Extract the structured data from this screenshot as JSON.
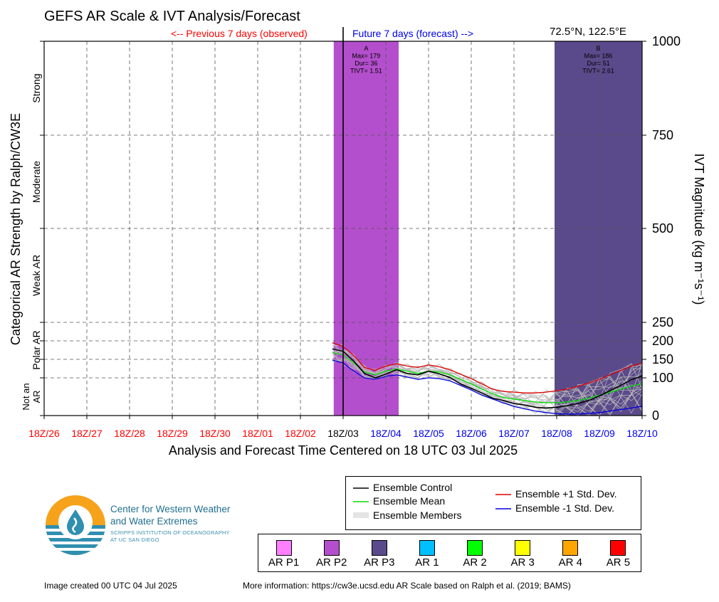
{
  "header": {
    "title": "GEFS AR Scale & IVT Analysis/Forecast",
    "previous_label": "<-- Previous 7 days (observed)",
    "future_label": "Future 7 days (forecast) -->",
    "location": "72.5°N, 122.5°E"
  },
  "colors": {
    "observed": "#ff0000",
    "forecast": "#0000ee",
    "ar_p2": "#b34fcc",
    "ar_p3": "#5b4a8b",
    "control": "#000000",
    "mean": "#00e000",
    "plus_std": "#e00000",
    "minus_std": "#0000e0",
    "members": "#b8b8b8"
  },
  "chart_data": {
    "type": "line",
    "xlabel": "Analysis and Forecast Time Centered on 18 UTC 03 Jul 2025",
    "ylabel_left": "Categorical AR Strength by Ralph/CW3E",
    "ylabel_right": "IVT Magnitude (kg m⁻¹s⁻¹)",
    "ylim": [
      0,
      1000
    ],
    "x_range": [
      0,
      14
    ],
    "x_ticks": [
      {
        "label": "18Z/26",
        "x": 0,
        "kind": "observed"
      },
      {
        "label": "18Z/27",
        "x": 1,
        "kind": "observed"
      },
      {
        "label": "18Z/28",
        "x": 2,
        "kind": "observed"
      },
      {
        "label": "18Z/29",
        "x": 3,
        "kind": "observed"
      },
      {
        "label": "18Z/30",
        "x": 4,
        "kind": "observed"
      },
      {
        "label": "18Z/01",
        "x": 5,
        "kind": "observed"
      },
      {
        "label": "18Z/02",
        "x": 6,
        "kind": "observed"
      },
      {
        "label": "18Z/03",
        "x": 7,
        "kind": "now"
      },
      {
        "label": "18Z/04",
        "x": 8,
        "kind": "forecast"
      },
      {
        "label": "18Z/05",
        "x": 9,
        "kind": "forecast"
      },
      {
        "label": "18Z/06",
        "x": 10,
        "kind": "forecast"
      },
      {
        "label": "18Z/07",
        "x": 11,
        "kind": "forecast"
      },
      {
        "label": "18Z/08",
        "x": 12,
        "kind": "forecast"
      },
      {
        "label": "18Z/09",
        "x": 13,
        "kind": "forecast"
      },
      {
        "label": "18Z/10",
        "x": 14,
        "kind": "forecast"
      }
    ],
    "y_ticks": [
      0,
      100,
      150,
      200,
      250,
      500,
      750,
      1000
    ],
    "categories": [
      {
        "label": "Not an",
        "label2": "AR",
        "y0": 0,
        "y1": 100
      },
      {
        "label": "Polar AR",
        "label2": "",
        "y0": 100,
        "y1": 250
      },
      {
        "label": "Weak AR",
        "label2": "",
        "y0": 250,
        "y1": 500
      },
      {
        "label": "Moderate",
        "label2": "",
        "y0": 500,
        "y1": 750
      },
      {
        "label": "Strong",
        "label2": "",
        "y0": 750,
        "y1": 1000
      }
    ],
    "events": [
      {
        "id": "A",
        "x0": 6.78,
        "x1": 8.3,
        "category": "AR P2",
        "lines": [
          "A",
          "Max= 179",
          "Dur= 36",
          "TIVT= 1.51"
        ]
      },
      {
        "id": "B",
        "x0": 11.95,
        "x1": 14.0,
        "category": "AR P3",
        "lines": [
          "B",
          "Max= 186",
          "Dur= 51",
          "TIVT= 2.61"
        ]
      }
    ],
    "x": [
      6.75,
      7.0,
      7.25,
      7.5,
      7.75,
      8.0,
      8.25,
      8.5,
      8.75,
      9.0,
      9.25,
      9.5,
      9.75,
      10.0,
      10.25,
      10.5,
      10.75,
      11.0,
      11.25,
      11.5,
      11.75,
      12.0,
      12.25,
      12.5,
      12.75,
      13.0,
      13.25,
      13.5,
      13.75,
      14.0
    ],
    "series": [
      {
        "name": "Ensemble Control",
        "key": "control",
        "values": [
          178,
          172,
          145,
          112,
          100,
          110,
          122,
          112,
          108,
          118,
          111,
          101,
          84,
          72,
          60,
          46,
          40,
          32,
          28,
          22,
          20,
          22,
          26,
          32,
          40,
          52,
          66,
          80,
          95,
          105
        ]
      },
      {
        "name": "Ensemble Mean",
        "key": "mean",
        "values": [
          168,
          162,
          140,
          116,
          108,
          118,
          124,
          118,
          112,
          118,
          116,
          108,
          96,
          84,
          70,
          58,
          48,
          44,
          40,
          36,
          34,
          34,
          36,
          40,
          46,
          54,
          62,
          70,
          78,
          85
        ]
      },
      {
        "name": "Ensemble +1 Std. Dev.",
        "key": "plus_std",
        "values": [
          195,
          185,
          160,
          128,
          120,
          132,
          138,
          132,
          128,
          135,
          130,
          122,
          110,
          98,
          84,
          70,
          64,
          62,
          60,
          60,
          62,
          66,
          70,
          78,
          86,
          96,
          108,
          120,
          132,
          140
        ]
      },
      {
        "name": "Ensemble -1 Std. Dev.",
        "key": "minus_std",
        "values": [
          148,
          140,
          118,
          100,
          96,
          104,
          108,
          102,
          96,
          100,
          98,
          92,
          80,
          68,
          54,
          44,
          34,
          24,
          18,
          12,
          8,
          5,
          4,
          4,
          6,
          8,
          12,
          16,
          20,
          25
        ]
      }
    ]
  },
  "legend_lines": {
    "control": "Ensemble Control",
    "mean": "Ensemble Mean",
    "members": "Ensemble Members",
    "plus_std": "Ensemble +1 Std. Dev.",
    "minus_std": "Ensemble -1 Std. Dev."
  },
  "legend_scale": [
    {
      "label": "AR P1",
      "color": "#ff80ff"
    },
    {
      "label": "AR P2",
      "color": "#b34fcc"
    },
    {
      "label": "AR P3",
      "color": "#5b4a8b"
    },
    {
      "label": "AR 1",
      "color": "#00bfff"
    },
    {
      "label": "AR 2",
      "color": "#00ff00"
    },
    {
      "label": "AR 3",
      "color": "#ffff00"
    },
    {
      "label": "AR 4",
      "color": "#ffa500"
    },
    {
      "label": "AR 5",
      "color": "#ff0000"
    }
  ],
  "logo": {
    "line1": "Center for Western Weather",
    "line2": "and Water Extremes",
    "line3": "SCRIPPS INSTITUTION OF OCEANOGRAPHY",
    "line4": "AT UC SAN DIEGO"
  },
  "footer": {
    "created": "Image created 00 UTC 04 Jul 2025",
    "more_info": "More information: https://cw3e.ucsd.edu AR Scale based on Ralph et al. (2019; BAMS)"
  }
}
